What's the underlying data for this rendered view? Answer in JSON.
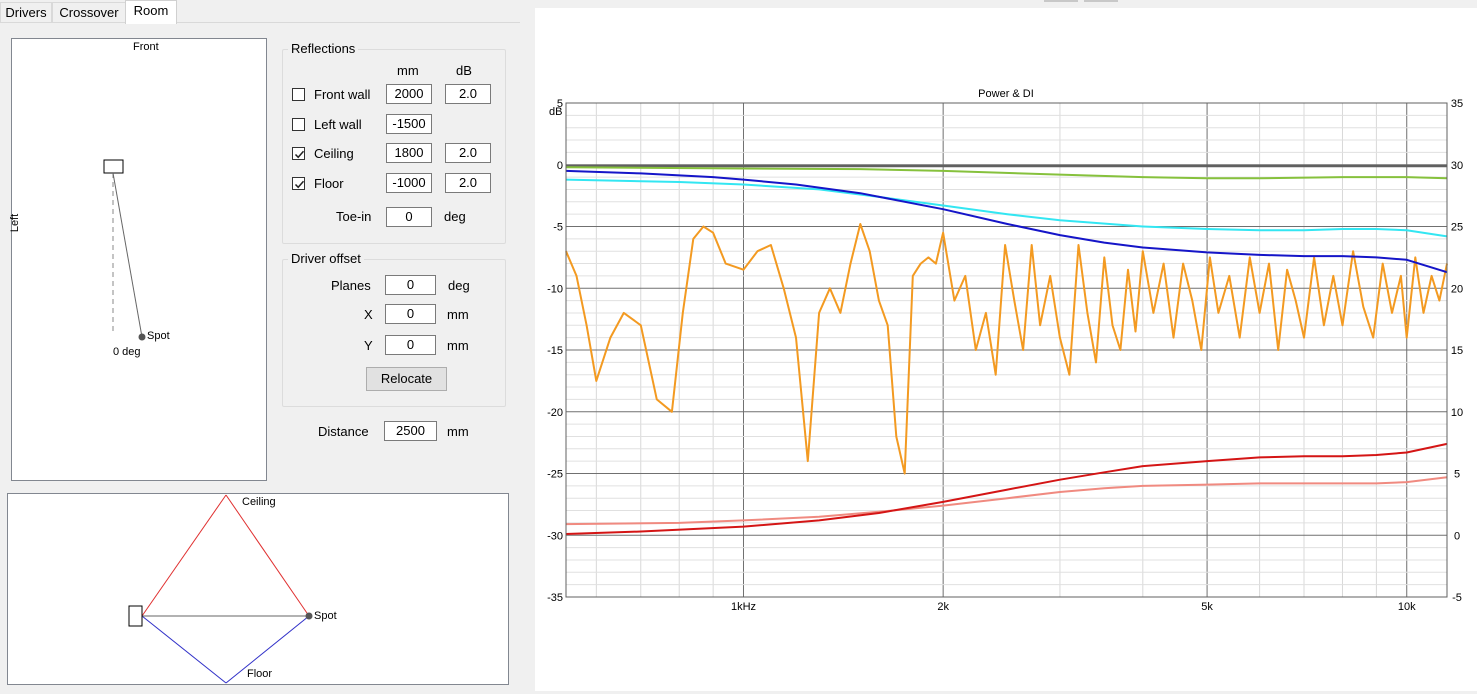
{
  "tabs": [
    {
      "label": "Drivers",
      "active": false
    },
    {
      "label": "Crossover",
      "active": false
    },
    {
      "label": "Room",
      "active": true
    }
  ],
  "top_view": {
    "front_label": "Front",
    "left_label": "Left",
    "spot_label": "Spot",
    "angle_label": "0 deg"
  },
  "side_view": {
    "ceiling_label": "Ceiling",
    "floor_label": "Floor",
    "spot_label": "Spot"
  },
  "reflections": {
    "title": "Reflections",
    "col_mm": "mm",
    "col_db": "dB",
    "rows": [
      {
        "label": "Front wall",
        "checked": false,
        "mm": "2000",
        "db": "2.0"
      },
      {
        "label": "Left wall",
        "checked": false,
        "mm": "-1500",
        "db": ""
      },
      {
        "label": "Ceiling",
        "checked": true,
        "mm": "1800",
        "db": "2.0"
      },
      {
        "label": "Floor",
        "checked": true,
        "mm": "-1000",
        "db": "2.0"
      }
    ],
    "toe_in_label": "Toe-in",
    "toe_in_value": "0",
    "toe_in_unit": "deg"
  },
  "driver_offset": {
    "title": "Driver offset",
    "planes_label": "Planes",
    "planes_value": "0",
    "planes_unit": "deg",
    "x_label": "X",
    "x_value": "0",
    "x_unit": "mm",
    "y_label": "Y",
    "y_value": "0",
    "y_unit": "mm",
    "relocate_label": "Relocate"
  },
  "distance": {
    "label": "Distance",
    "value": "2500",
    "unit": "mm"
  },
  "colors": {
    "orange": "#f39a21",
    "blue": "#1515c8",
    "cyan": "#33e6f2",
    "green": "#86c13c",
    "gray": "#606060",
    "red": "#d41515",
    "pink": "#f08a80",
    "reflect_red": "#e03030",
    "reflect_blue": "#3030c8"
  },
  "chart_data": {
    "type": "line",
    "title": "Power & DI",
    "left_axis_label": "dB",
    "x_scale": "log",
    "xlim": [
      540,
      11500
    ],
    "ylim_left": [
      -35,
      5
    ],
    "ylim_right": [
      -5,
      35
    ],
    "x_ticks": [
      {
        "value": 1000,
        "label": "1kHz"
      },
      {
        "value": 2000,
        "label": "2k"
      },
      {
        "value": 5000,
        "label": "5k"
      },
      {
        "value": 10000,
        "label": "10k"
      }
    ],
    "y_ticks_left": [
      "5",
      "0",
      "-5",
      "-10",
      "-15",
      "-20",
      "-25",
      "-30",
      "-35"
    ],
    "y_ticks_right": [
      "35",
      "30",
      "25",
      "20",
      "15",
      "10",
      "5",
      "0",
      "-5"
    ],
    "grid": true,
    "series": [
      {
        "axis": "left",
        "color_key": "gray",
        "x": [
          540,
          11500
        ],
        "y": [
          -0.1,
          -0.1
        ]
      },
      {
        "axis": "left",
        "color_key": "green",
        "x": [
          540,
          1000,
          1500,
          2000,
          3000,
          4000,
          5000,
          6000,
          8000,
          10000,
          11500
        ],
        "y": [
          -0.2,
          -0.3,
          -0.35,
          -0.5,
          -0.8,
          -1.0,
          -1.1,
          -1.1,
          -1.0,
          -1.0,
          -1.1
        ]
      },
      {
        "axis": "left",
        "color_key": "cyan",
        "x": [
          540,
          800,
          1000,
          1300,
          1600,
          2000,
          2500,
          3000,
          4000,
          5000,
          6000,
          7000,
          8000,
          9000,
          10000,
          11500
        ],
        "y": [
          -1.2,
          -1.4,
          -1.6,
          -2.0,
          -2.6,
          -3.3,
          -4.0,
          -4.5,
          -5.0,
          -5.2,
          -5.3,
          -5.3,
          -5.2,
          -5.2,
          -5.3,
          -5.8
        ]
      },
      {
        "axis": "left",
        "color_key": "blue",
        "x": [
          540,
          700,
          900,
          1000,
          1200,
          1500,
          2000,
          2500,
          3000,
          3500,
          4000,
          5000,
          6000,
          7000,
          8000,
          9000,
          10000,
          11500
        ],
        "y": [
          -0.5,
          -0.7,
          -1.0,
          -1.2,
          -1.6,
          -2.3,
          -3.6,
          -4.8,
          -5.7,
          -6.3,
          -6.7,
          -7.1,
          -7.3,
          -7.4,
          -7.4,
          -7.5,
          -7.7,
          -8.7
        ]
      },
      {
        "axis": "left",
        "color_key": "red",
        "x": [
          540,
          700,
          1000,
          1300,
          1600,
          2000,
          2500,
          3000,
          3500,
          4000,
          5000,
          6000,
          7000,
          8000,
          9000,
          10000,
          11500
        ],
        "y": [
          -29.9,
          -29.7,
          -29.3,
          -28.8,
          -28.2,
          -27.3,
          -26.3,
          -25.5,
          -24.9,
          -24.4,
          -24.0,
          -23.7,
          -23.6,
          -23.6,
          -23.5,
          -23.3,
          -22.6
        ]
      },
      {
        "axis": "left",
        "color_key": "pink",
        "x": [
          540,
          800,
          1000,
          1300,
          1600,
          2000,
          2500,
          3000,
          3500,
          4000,
          5000,
          6000,
          7000,
          8000,
          9000,
          10000,
          11500
        ],
        "y": [
          -29.1,
          -29.0,
          -28.8,
          -28.5,
          -28.1,
          -27.6,
          -27.0,
          -26.5,
          -26.2,
          -26.0,
          -25.9,
          -25.8,
          -25.8,
          -25.8,
          -25.8,
          -25.7,
          -25.3
        ]
      },
      {
        "axis": "left",
        "color_key": "orange",
        "x": [
          540,
          560,
          580,
          600,
          630,
          660,
          700,
          740,
          780,
          810,
          840,
          870,
          900,
          940,
          1000,
          1050,
          1100,
          1150,
          1200,
          1250,
          1300,
          1350,
          1400,
          1450,
          1500,
          1550,
          1600,
          1650,
          1700,
          1750,
          1800,
          1850,
          1900,
          1950,
          2000,
          2080,
          2160,
          2240,
          2320,
          2400,
          2480,
          2560,
          2640,
          2720,
          2800,
          2900,
          3000,
          3100,
          3200,
          3300,
          3400,
          3500,
          3600,
          3700,
          3800,
          3900,
          4000,
          4150,
          4300,
          4450,
          4600,
          4750,
          4900,
          5050,
          5200,
          5400,
          5600,
          5800,
          6000,
          6200,
          6400,
          6600,
          6800,
          7000,
          7250,
          7500,
          7750,
          8000,
          8300,
          8600,
          8900,
          9200,
          9500,
          9800,
          10000,
          10300,
          10600,
          10900,
          11200,
          11500
        ],
        "y": [
          -7,
          -9,
          -13,
          -17.5,
          -14,
          -12,
          -13,
          -19,
          -20,
          -12,
          -6,
          -5,
          -5.5,
          -8,
          -8.5,
          -7,
          -6.5,
          -10,
          -14,
          -24,
          -12,
          -10,
          -12,
          -8,
          -4.8,
          -7,
          -11,
          -13,
          -22,
          -25,
          -9,
          -8,
          -7.5,
          -8,
          -5.5,
          -11,
          -9,
          -15,
          -12,
          -17,
          -6.5,
          -11,
          -15,
          -6.5,
          -13,
          -9,
          -14,
          -17,
          -6.5,
          -12,
          -16,
          -7.5,
          -13,
          -15,
          -8.5,
          -13.5,
          -7,
          -12,
          -8,
          -14,
          -8,
          -11,
          -15,
          -7.5,
          -12,
          -9,
          -14,
          -7.5,
          -12,
          -8,
          -15,
          -8.5,
          -11,
          -14,
          -7.5,
          -13,
          -9,
          -13,
          -7,
          -11.5,
          -14,
          -8,
          -12,
          -9,
          -14,
          -7.5,
          -12,
          -9,
          -11,
          -8
        ]
      }
    ]
  }
}
